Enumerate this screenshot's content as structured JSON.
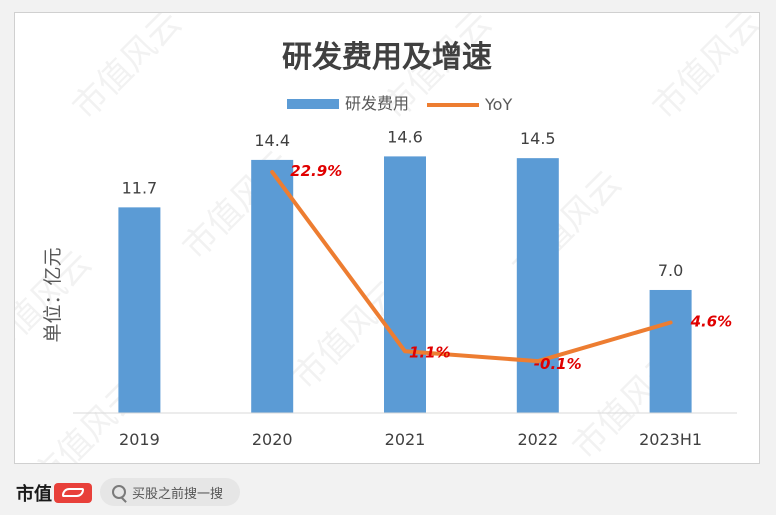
{
  "chart_data": {
    "type": "bar+line",
    "title": "研发费用及增速",
    "ylabel": "单位：亿元",
    "categories": [
      "2019",
      "2020",
      "2021",
      "2022",
      "2023H1"
    ],
    "bar_ylim": [
      0,
      16.5
    ],
    "line_ylim": [
      -3,
      24
    ],
    "series": [
      {
        "name": "研发费用",
        "type": "bar",
        "color": "#5b9bd5",
        "values": [
          11.7,
          14.4,
          14.6,
          14.5,
          7.0
        ],
        "labels": [
          "11.7",
          "14.4",
          "14.6",
          "14.5",
          "7.0"
        ]
      },
      {
        "name": "YoY",
        "type": "line",
        "color": "#ed7d31",
        "values": [
          null,
          22.9,
          1.1,
          -0.1,
          4.6
        ],
        "labels": [
          "",
          "22.9%",
          "1.1%",
          "-0.1%",
          "4.6%"
        ]
      }
    ],
    "grid": false,
    "legend": "top-center"
  },
  "watermark": "市值风云",
  "footer": {
    "brand": "市值",
    "search_text": "买股之前搜一搜"
  }
}
